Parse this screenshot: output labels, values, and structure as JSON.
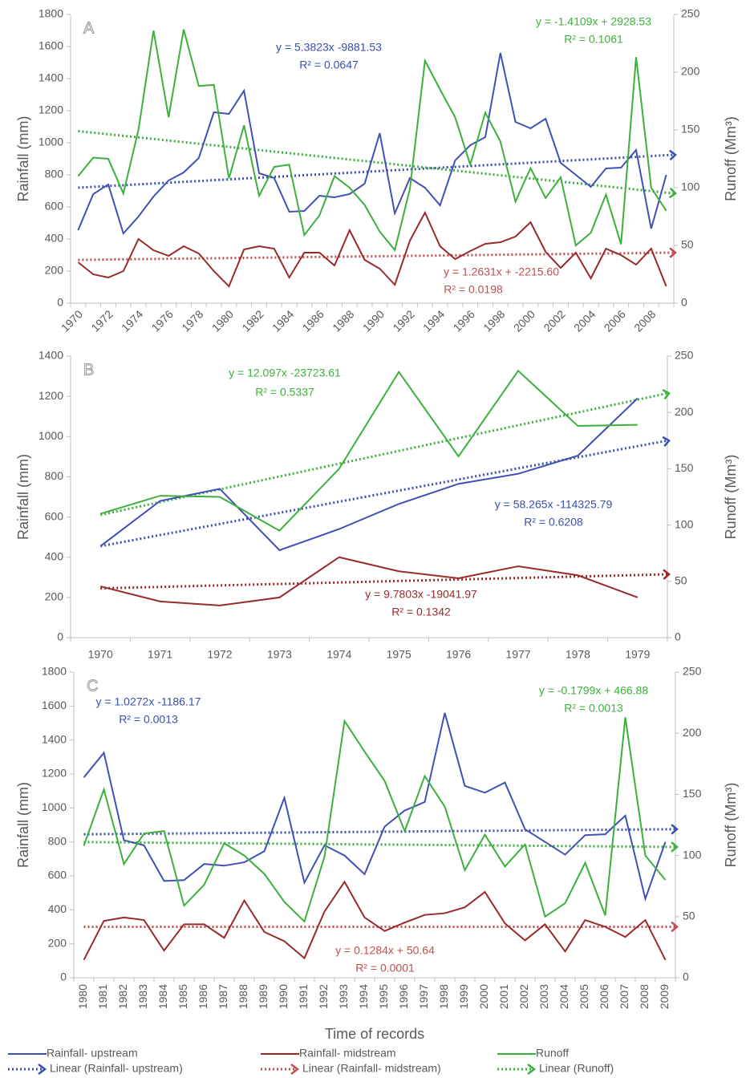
{
  "chart_data": [
    {
      "type": "line",
      "label": "A",
      "categories": [
        "1970",
        null,
        "1972",
        null,
        "1974",
        null,
        "1976",
        null,
        "1978",
        null,
        "1980",
        null,
        "1982",
        null,
        "1984",
        null,
        "1986",
        null,
        "1988",
        null,
        "1990",
        null,
        "1992",
        null,
        "1994",
        null,
        "1996",
        null,
        "1998",
        null,
        "2000",
        null,
        "2002",
        null,
        "2004",
        null,
        "2006",
        null,
        "2008",
        null
      ],
      "ylabel": "Rainfall (mm)",
      "y2label": "Runoff (Mm³)",
      "ylim": [
        0,
        1800
      ],
      "yticks": [
        0,
        200,
        400,
        600,
        800,
        1000,
        1200,
        1400,
        1600,
        1800
      ],
      "y2lim": [
        0,
        250
      ],
      "y2ticks": [
        0,
        50,
        100,
        150,
        200,
        250
      ],
      "series": [
        {
          "name": "Rainfall- upstream",
          "color": "#4050b5",
          "values": [
            455,
            680,
            740,
            435,
            540,
            665,
            765,
            815,
            905,
            1190,
            1180,
            1325,
            810,
            780,
            570,
            575,
            670,
            660,
            680,
            745,
            1060,
            560,
            780,
            720,
            610,
            890,
            985,
            1035,
            1560,
            1130,
            1090,
            1150,
            875,
            800,
            725,
            840,
            845,
            955,
            465,
            800
          ]
        },
        {
          "name": "Rainfall- midstream",
          "color": "#9a2a2a",
          "values": [
            255,
            180,
            160,
            200,
            400,
            330,
            295,
            355,
            310,
            200,
            105,
            335,
            355,
            340,
            160,
            315,
            315,
            235,
            455,
            270,
            215,
            115,
            390,
            565,
            355,
            275,
            325,
            370,
            380,
            415,
            505,
            320,
            220,
            315,
            155,
            340,
            300,
            240,
            340,
            105
          ]
        },
        {
          "name": "Runoff",
          "color": "#3cb03c",
          "axis": "y2",
          "values": [
            110,
            126,
            125,
            95,
            150,
            236,
            161,
            237,
            188,
            189,
            108,
            154,
            93,
            118,
            120,
            59,
            76,
            110,
            100,
            85,
            62,
            46,
            99,
            210,
            185,
            161,
            120,
            165,
            140,
            88,
            117,
            91,
            109,
            50,
            61,
            94,
            51,
            213,
            100,
            80
          ]
        }
      ],
      "trendlines": [
        {
          "name": "Linear (Rainfall- upstream)",
          "color": "#3a4fb0",
          "values": [
            720,
            925
          ],
          "equation": "y = 5.3823x -9881.53",
          "r2": "R² = 0.0647"
        },
        {
          "name": "Linear (Rainfall- midstream)",
          "color": "#c05050",
          "values": [
            270,
            315
          ],
          "equation": "y = 1.2631x + -2215.60",
          "r2": "R² = 0.0198"
        },
        {
          "name": "Linear (Runoff)",
          "color": "#3cb03c",
          "axis": "y2",
          "values": [
            149,
            95
          ],
          "equation": "y = -1.4109x + 2928.53",
          "r2": "R² = 0.1061"
        }
      ]
    },
    {
      "type": "line",
      "label": "B",
      "categories": [
        "1970",
        "1971",
        "1972",
        "1973",
        "1974",
        "1975",
        "1976",
        "1977",
        "1978",
        "1979"
      ],
      "ylabel": "Rainfall (mm)",
      "y2label": "Runoff (Mm³)",
      "ylim": [
        0,
        1400
      ],
      "yticks": [
        0,
        200,
        400,
        600,
        800,
        1000,
        1200,
        1400
      ],
      "y2lim": [
        0,
        250
      ],
      "y2ticks": [
        0,
        50,
        100,
        150,
        200,
        250
      ],
      "series": [
        {
          "name": "Rainfall- upstream",
          "color": "#4050b5",
          "values": [
            455,
            680,
            740,
            435,
            540,
            665,
            765,
            815,
            905,
            1190
          ]
        },
        {
          "name": "Rainfall- midstream",
          "color": "#9a2a2a",
          "values": [
            255,
            180,
            160,
            200,
            400,
            330,
            295,
            355,
            310,
            200
          ]
        },
        {
          "name": "Runoff",
          "color": "#3cb03c",
          "axis": "y2",
          "values": [
            110,
            126,
            125,
            95,
            150,
            236,
            161,
            237,
            188,
            189
          ]
        }
      ],
      "trendlines": [
        {
          "name": "Linear (Rainfall- upstream)",
          "color": "#3a4fb0",
          "values": [
            455,
            980
          ],
          "equation": "y = 58.265x -114325.79",
          "r2": "R² = 0.6208"
        },
        {
          "name": "Linear (Rainfall- midstream)",
          "color": "#9a2a2a",
          "values": [
            245,
            315
          ],
          "equation": "y = 9.7803x -19041.97",
          "r2": "R² = 0.1342"
        },
        {
          "name": "Linear (Runoff)",
          "color": "#3cb03c",
          "axis": "y2",
          "values": [
            109,
            217
          ],
          "equation": "y = 12.097x -23723.61",
          "r2": "R² = 0.5337"
        }
      ]
    },
    {
      "type": "line",
      "label": "C",
      "categories": [
        "1980",
        "1981",
        "1982",
        "1983",
        "1984",
        "1985",
        "1986",
        "1987",
        "1988",
        "1989",
        "1990",
        "1991",
        "1992",
        "1993",
        "1994",
        "1995",
        "1996",
        "1997",
        "1998",
        "1999",
        "2000",
        "2001",
        "2002",
        "2003",
        "2004",
        "2005",
        "2006",
        "2007",
        "2008",
        "2009"
      ],
      "ylabel": "Rainfall (mm)",
      "y2label": "Runoff (Mm³)",
      "xlabel": "Time of records",
      "ylim": [
        0,
        1800
      ],
      "yticks": [
        0,
        200,
        400,
        600,
        800,
        1000,
        1200,
        1400,
        1600,
        1800
      ],
      "y2lim": [
        0,
        250
      ],
      "y2ticks": [
        0,
        50,
        100,
        150,
        200,
        250
      ],
      "series": [
        {
          "name": "Rainfall- upstream",
          "color": "#4050b5",
          "values": [
            1180,
            1325,
            810,
            780,
            570,
            575,
            670,
            660,
            680,
            745,
            1060,
            560,
            780,
            720,
            610,
            890,
            985,
            1035,
            1560,
            1130,
            1090,
            1150,
            875,
            800,
            725,
            840,
            845,
            955,
            465,
            800
          ]
        },
        {
          "name": "Rainfall- midstream",
          "color": "#9a2a2a",
          "values": [
            105,
            335,
            355,
            340,
            160,
            315,
            315,
            235,
            455,
            270,
            215,
            115,
            390,
            565,
            355,
            275,
            325,
            370,
            380,
            415,
            505,
            320,
            220,
            315,
            155,
            340,
            300,
            240,
            340,
            105
          ]
        },
        {
          "name": "Runoff",
          "color": "#3cb03c",
          "axis": "y2",
          "values": [
            108,
            154,
            93,
            118,
            120,
            59,
            76,
            110,
            100,
            85,
            62,
            46,
            99,
            210,
            185,
            161,
            120,
            165,
            140,
            88,
            117,
            91,
            109,
            50,
            61,
            94,
            51,
            213,
            100,
            80
          ]
        }
      ],
      "trendlines": [
        {
          "name": "Linear (Rainfall- upstream)",
          "color": "#3a4fb0",
          "values": [
            845,
            875
          ],
          "equation": "y = 1.0272x -1186.17",
          "r2": "R² = 0.0013"
        },
        {
          "name": "Linear (Rainfall- midstream)",
          "color": "#c05050",
          "values": [
            300,
            300
          ],
          "equation": "y = 0.1284x + 50.64",
          "r2": "R² = 0.0001"
        },
        {
          "name": "Linear (Runoff)",
          "color": "#3cb03c",
          "axis": "y2",
          "values": [
            111,
            107
          ],
          "equation": "y = -0.1799x + 466.88",
          "r2": "R² = 0.0013"
        }
      ]
    }
  ]
}
